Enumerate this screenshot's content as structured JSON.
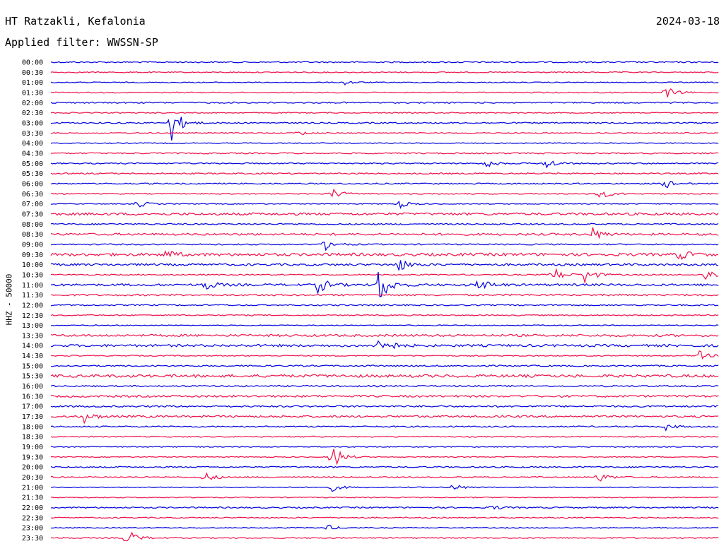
{
  "header": {
    "station": "HT Ratzakli, Kefalonia",
    "date": "2024-03-18",
    "filter": "Applied filter: WWSSN-SP"
  },
  "chart_data": {
    "type": "line",
    "chart_kind": "helicorder",
    "ylabel": "HHZ - 50000",
    "colors": [
      "#0000e0",
      "#f0104a"
    ],
    "rows": [
      {
        "time": "00:00",
        "color": "#0000e0",
        "bursts": []
      },
      {
        "time": "00:30",
        "color": "#f0104a",
        "bursts": []
      },
      {
        "time": "01:00",
        "color": "#0000e0",
        "bursts": [
          {
            "at": 0.44,
            "amp": 0.5
          }
        ]
      },
      {
        "time": "01:30",
        "color": "#f0104a",
        "bursts": [
          {
            "at": 0.92,
            "amp": 1.3
          }
        ]
      },
      {
        "time": "02:00",
        "color": "#0000e0",
        "bursts": []
      },
      {
        "time": "02:30",
        "color": "#f0104a",
        "bursts": []
      },
      {
        "time": "03:00",
        "color": "#0000e0",
        "bursts": [
          {
            "at": 0.18,
            "amp": 4.0
          }
        ]
      },
      {
        "time": "03:30",
        "color": "#f0104a",
        "bursts": [
          {
            "at": 0.37,
            "amp": 0.5
          }
        ]
      },
      {
        "time": "04:00",
        "color": "#0000e0",
        "bursts": []
      },
      {
        "time": "04:30",
        "color": "#f0104a",
        "bursts": []
      },
      {
        "time": "05:00",
        "color": "#0000e0",
        "bursts": [
          {
            "at": 0.65,
            "amp": 1.0
          },
          {
            "at": 0.74,
            "amp": 1.3
          }
        ]
      },
      {
        "time": "05:30",
        "color": "#f0104a",
        "bursts": []
      },
      {
        "time": "06:00",
        "color": "#0000e0",
        "bursts": [
          {
            "at": 0.92,
            "amp": 1.0
          }
        ]
      },
      {
        "time": "06:30",
        "color": "#f0104a",
        "bursts": [
          {
            "at": 0.42,
            "amp": 1.2
          },
          {
            "at": 0.82,
            "amp": 1.2
          }
        ]
      },
      {
        "time": "07:00",
        "color": "#0000e0",
        "bursts": [
          {
            "at": 0.13,
            "amp": 0.8
          },
          {
            "at": 0.52,
            "amp": 1.0
          }
        ]
      },
      {
        "time": "07:30",
        "color": "#f0104a",
        "bursts": []
      },
      {
        "time": "08:00",
        "color": "#0000e0",
        "bursts": []
      },
      {
        "time": "08:30",
        "color": "#f0104a",
        "bursts": [
          {
            "at": 0.81,
            "amp": 1.5
          }
        ]
      },
      {
        "time": "09:00",
        "color": "#0000e0",
        "bursts": [
          {
            "at": 0.41,
            "amp": 1.2
          }
        ]
      },
      {
        "time": "09:30",
        "color": "#f0104a",
        "bursts": [
          {
            "at": 0.17,
            "amp": 1.0
          },
          {
            "at": 0.94,
            "amp": 1.2
          }
        ]
      },
      {
        "time": "10:00",
        "color": "#0000e0",
        "bursts": [
          {
            "at": 0.52,
            "amp": 1.5
          }
        ]
      },
      {
        "time": "10:30",
        "color": "#f0104a",
        "bursts": [
          {
            "at": 0.75,
            "amp": 2.0
          },
          {
            "at": 0.8,
            "amp": 1.8
          },
          {
            "at": 0.98,
            "amp": 1.6
          }
        ]
      },
      {
        "time": "11:00",
        "color": "#0000e0",
        "bursts": [
          {
            "at": 0.23,
            "amp": 1.2
          },
          {
            "at": 0.4,
            "amp": 1.8
          },
          {
            "at": 0.49,
            "amp": 4.5
          },
          {
            "at": 0.64,
            "amp": 1.6
          }
        ]
      },
      {
        "time": "11:30",
        "color": "#f0104a",
        "bursts": []
      },
      {
        "time": "12:00",
        "color": "#0000e0",
        "bursts": []
      },
      {
        "time": "12:30",
        "color": "#f0104a",
        "bursts": []
      },
      {
        "time": "13:00",
        "color": "#0000e0",
        "bursts": []
      },
      {
        "time": "13:30",
        "color": "#f0104a",
        "bursts": []
      },
      {
        "time": "14:00",
        "color": "#0000e0",
        "bursts": [
          {
            "at": 0.49,
            "amp": 3.0
          }
        ]
      },
      {
        "time": "14:30",
        "color": "#f0104a",
        "bursts": [
          {
            "at": 0.97,
            "amp": 1.0
          }
        ]
      },
      {
        "time": "15:00",
        "color": "#0000e0",
        "bursts": []
      },
      {
        "time": "15:30",
        "color": "#f0104a",
        "bursts": []
      },
      {
        "time": "16:00",
        "color": "#0000e0",
        "bursts": []
      },
      {
        "time": "16:30",
        "color": "#f0104a",
        "bursts": []
      },
      {
        "time": "17:00",
        "color": "#0000e0",
        "bursts": []
      },
      {
        "time": "17:30",
        "color": "#f0104a",
        "bursts": [
          {
            "at": 0.05,
            "amp": 1.2
          }
        ]
      },
      {
        "time": "18:00",
        "color": "#0000e0",
        "bursts": [
          {
            "at": 0.92,
            "amp": 0.7
          }
        ]
      },
      {
        "time": "18:30",
        "color": "#f0104a",
        "bursts": []
      },
      {
        "time": "19:00",
        "color": "#0000e0",
        "bursts": []
      },
      {
        "time": "19:30",
        "color": "#f0104a",
        "bursts": [
          {
            "at": 0.42,
            "amp": 3.0
          }
        ]
      },
      {
        "time": "20:00",
        "color": "#0000e0",
        "bursts": []
      },
      {
        "time": "20:30",
        "color": "#f0104a",
        "bursts": [
          {
            "at": 0.23,
            "amp": 1.0
          },
          {
            "at": 0.82,
            "amp": 1.0
          }
        ]
      },
      {
        "time": "21:00",
        "color": "#0000e0",
        "bursts": [
          {
            "at": 0.42,
            "amp": 0.8
          },
          {
            "at": 0.6,
            "amp": 0.8
          }
        ]
      },
      {
        "time": "21:30",
        "color": "#f0104a",
        "bursts": []
      },
      {
        "time": "22:00",
        "color": "#0000e0",
        "bursts": [
          {
            "at": 0.66,
            "amp": 0.5
          }
        ]
      },
      {
        "time": "22:30",
        "color": "#f0104a",
        "bursts": []
      },
      {
        "time": "23:00",
        "color": "#0000e0",
        "bursts": [
          {
            "at": 0.41,
            "amp": 0.8
          }
        ]
      },
      {
        "time": "23:30",
        "color": "#f0104a",
        "bursts": [
          {
            "at": 0.11,
            "amp": 2.5
          }
        ]
      }
    ]
  }
}
